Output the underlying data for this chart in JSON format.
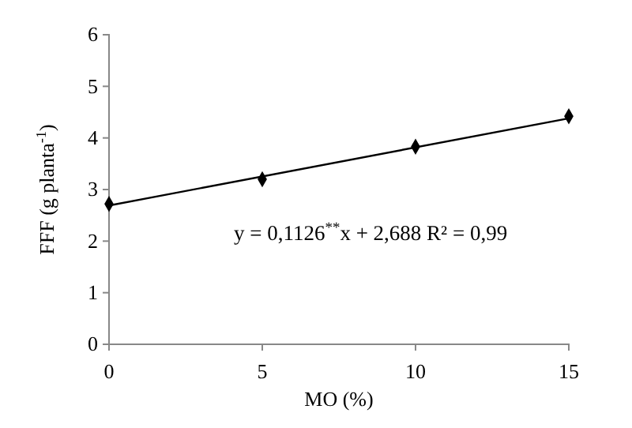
{
  "chart_data": {
    "type": "scatter",
    "xlabel": "MO (%)",
    "ylabel": "FFF (g planta$^{-1}$)",
    "x": [
      0,
      5,
      10,
      15
    ],
    "series": [
      {
        "color": "#000000",
        "values": [
          2.72,
          3.2,
          3.83,
          4.42
        ],
        "marker": "diamond"
      },
      {
        "type": "line",
        "color": "#000000",
        "x": [
          0,
          15
        ],
        "values": [
          2.69,
          4.38
        ],
        "marker": "none",
        "line_style": "solid"
      }
    ],
    "xlim": [
      0,
      15
    ],
    "xticks": [
      0,
      5,
      10,
      15
    ],
    "ylim": [
      0,
      6
    ],
    "yticks": [
      0,
      1,
      2,
      3,
      4,
      5,
      6
    ],
    "annotations": [
      "y = 0,1126$^{**}$x + 2,688 R² = 0,99"
    ],
    "grid": false
  }
}
